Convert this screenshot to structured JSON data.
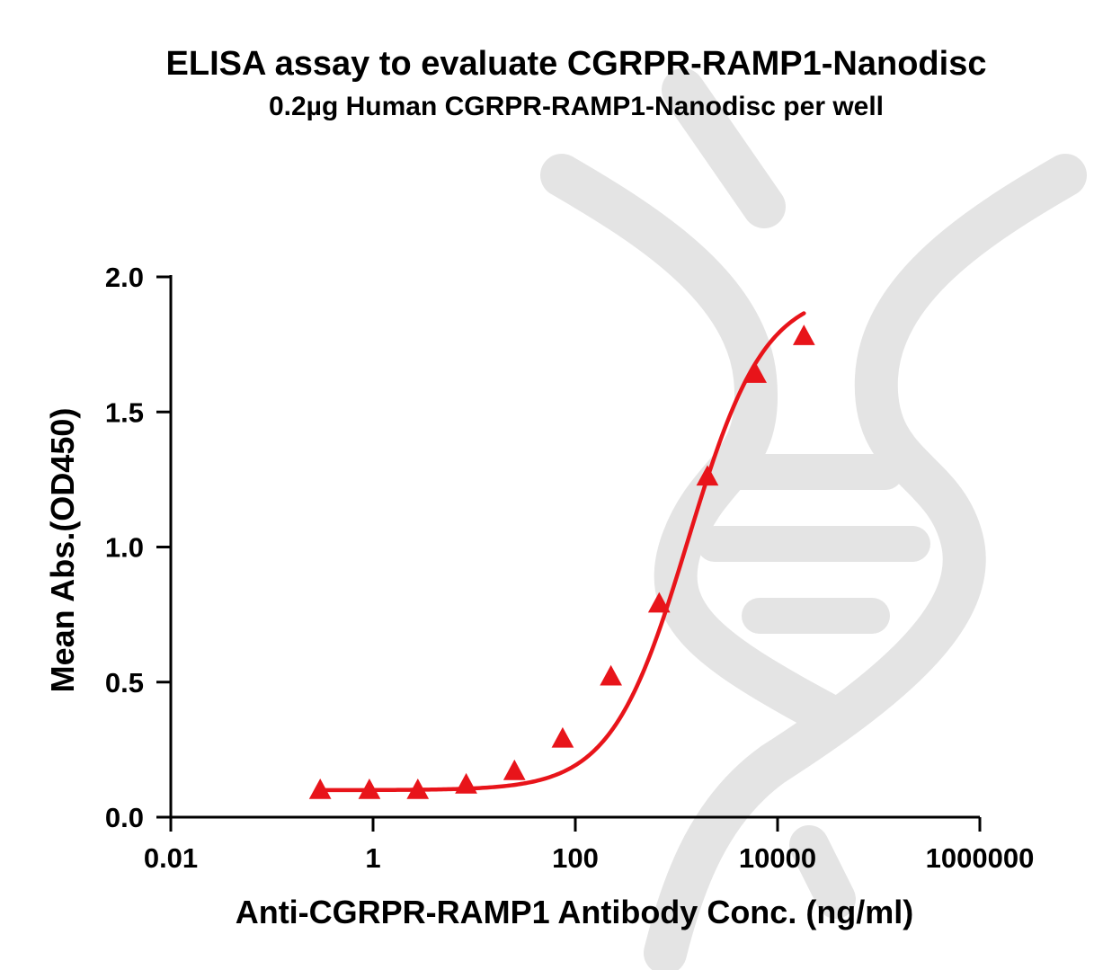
{
  "chart_data": {
    "type": "scatter",
    "title": "ELISA assay to evaluate CGRPR-RAMP1-Nanodisc",
    "subtitle": "0.2µg Human CGRPR-RAMP1-Nanodisc per well",
    "xlabel": "Anti-CGRPR-RAMP1 Antibody Conc. (ng/ml)",
    "ylabel": "Mean Abs.(OD450)",
    "x_scale": "log",
    "xlim": [
      0.01,
      1000000
    ],
    "ylim": [
      0,
      2.0
    ],
    "x_ticks": [
      0.01,
      1,
      100,
      10000,
      1000000
    ],
    "x_tick_labels": [
      "0.01",
      "1",
      "100",
      "10000",
      "1000000"
    ],
    "y_ticks": [
      0,
      0.5,
      1.0,
      1.5,
      2.0
    ],
    "y_tick_labels": [
      "0.0",
      "0.5",
      "1.0",
      "1.5",
      "2.0"
    ],
    "grid": false,
    "series": [
      {
        "marker": "triangle",
        "color": "#e8141a",
        "fit": "4PL",
        "x": [
          0.3,
          0.92,
          2.77,
          8.33,
          25,
          75,
          225,
          675,
          2025,
          6075,
          18225
        ],
        "y": [
          0.1,
          0.1,
          0.1,
          0.12,
          0.17,
          0.29,
          0.52,
          0.79,
          1.26,
          1.64,
          1.78
        ]
      }
    ]
  }
}
